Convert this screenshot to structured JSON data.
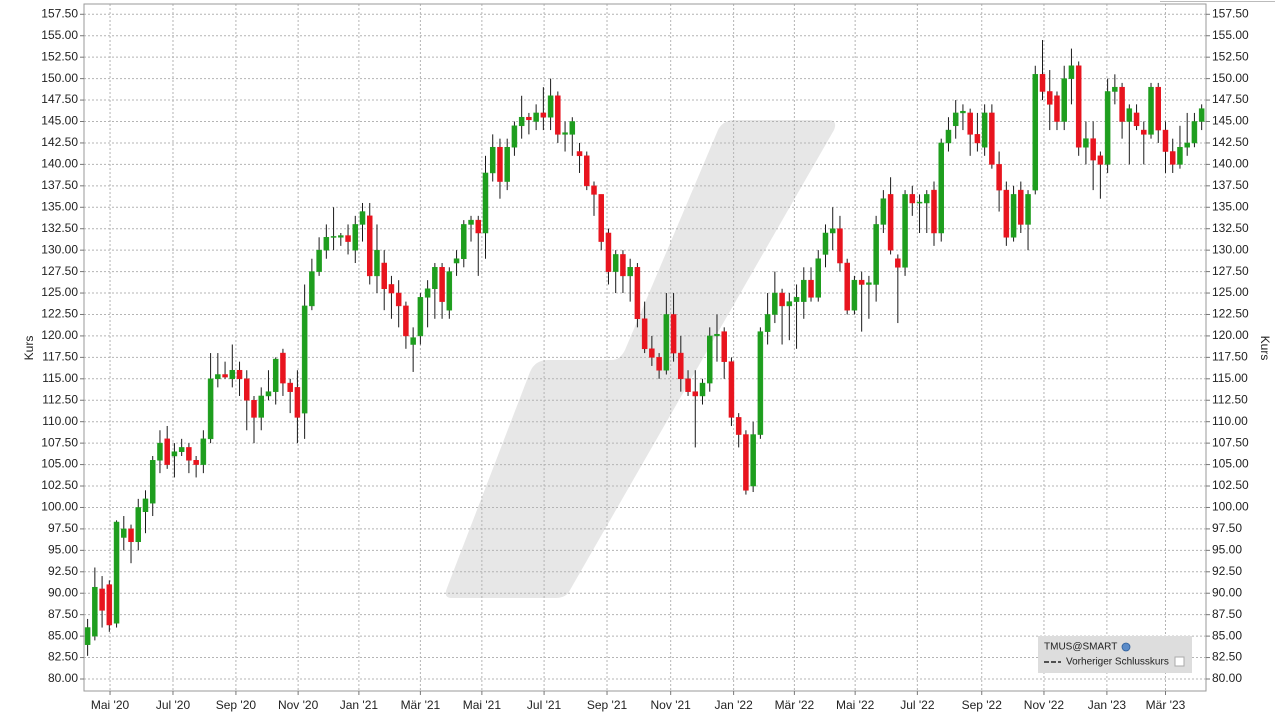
{
  "chart_data": {
    "type": "candlestick",
    "ylabel": "Kurs",
    "y2label": "Kurs",
    "legend": [
      "TMUS@SMART",
      "Vorheriger Schlusskurs"
    ],
    "up_color": "#1e9e1e",
    "down_color": "#e8141e",
    "grid": true,
    "xlim": [
      -0.5,
      154.6
    ],
    "xticks": [
      {
        "value": 3.1,
        "label": "Mai '20"
      },
      {
        "value": 11.8,
        "label": "Jul '20"
      },
      {
        "value": 20.5,
        "label": "Sep '20"
      },
      {
        "value": 29.1,
        "label": "Nov '20"
      },
      {
        "value": 37.5,
        "label": "Jan '21"
      },
      {
        "value": 46.0,
        "label": "Mär '21"
      },
      {
        "value": 54.5,
        "label": "Mai '21"
      },
      {
        "value": 63.1,
        "label": "Jul '21"
      },
      {
        "value": 71.8,
        "label": "Sep '21"
      },
      {
        "value": 80.6,
        "label": "Nov '21"
      },
      {
        "value": 89.3,
        "label": "Jan '22"
      },
      {
        "value": 97.7,
        "label": "Mär '22"
      },
      {
        "value": 106.1,
        "label": "Mai '22"
      },
      {
        "value": 114.7,
        "label": "Jul '22"
      },
      {
        "value": 123.6,
        "label": "Sep '22"
      },
      {
        "value": 132.2,
        "label": "Nov '22"
      },
      {
        "value": 140.9,
        "label": "Jan '23"
      },
      {
        "value": 149.0,
        "label": "Mär '23"
      }
    ],
    "ylim": [
      78.6,
      158.7
    ],
    "yticks": [
      {
        "value": 80,
        "label": "80.00"
      },
      {
        "value": 82.5,
        "label": "82.50"
      },
      {
        "value": 85,
        "label": "85.00"
      },
      {
        "value": 87.5,
        "label": "87.50"
      },
      {
        "value": 90,
        "label": "90.00"
      },
      {
        "value": 92.5,
        "label": "92.50"
      },
      {
        "value": 95,
        "label": "95.00"
      },
      {
        "value": 97.5,
        "label": "97.50"
      },
      {
        "value": 100,
        "label": "100.00"
      },
      {
        "value": 102.5,
        "label": "102.50"
      },
      {
        "value": 105,
        "label": "105.00"
      },
      {
        "value": 107.5,
        "label": "107.50"
      },
      {
        "value": 110,
        "label": "110.00"
      },
      {
        "value": 112.5,
        "label": "112.50"
      },
      {
        "value": 115,
        "label": "115.00"
      },
      {
        "value": 117.5,
        "label": "117.50"
      },
      {
        "value": 120,
        "label": "120.00"
      },
      {
        "value": 122.5,
        "label": "122.50"
      },
      {
        "value": 125,
        "label": "125.00"
      },
      {
        "value": 127.5,
        "label": "127.50"
      },
      {
        "value": 130,
        "label": "130.00"
      },
      {
        "value": 132.5,
        "label": "132.50"
      },
      {
        "value": 135,
        "label": "135.00"
      },
      {
        "value": 137.5,
        "label": "137.50"
      },
      {
        "value": 140,
        "label": "140.00"
      },
      {
        "value": 142.5,
        "label": "142.50"
      },
      {
        "value": 145,
        "label": "145.00"
      },
      {
        "value": 147.5,
        "label": "147.50"
      },
      {
        "value": 150,
        "label": "150.00"
      },
      {
        "value": 152.5,
        "label": "152.50"
      },
      {
        "value": 155,
        "label": "155.00"
      },
      {
        "value": 157.5,
        "label": "157.50"
      }
    ],
    "x": [
      0,
      1,
      2,
      3,
      4,
      5,
      6,
      7,
      8,
      9,
      10,
      11,
      12,
      13,
      14,
      15,
      16,
      17,
      18,
      19,
      20,
      21,
      22,
      23,
      24,
      25,
      26,
      27,
      28,
      29,
      30,
      31,
      32,
      33,
      34,
      35,
      36,
      37,
      38,
      39,
      40,
      41,
      42,
      43,
      44,
      45,
      46,
      47,
      48,
      49,
      50,
      51,
      52,
      53,
      54,
      55,
      56,
      57,
      58,
      59,
      60,
      61,
      62,
      63,
      64,
      65,
      66,
      67,
      68,
      69,
      70,
      71,
      72,
      73,
      74,
      75,
      76,
      77,
      78,
      79,
      80,
      81,
      82,
      83,
      84,
      85,
      86,
      87,
      88,
      89,
      90,
      91,
      92,
      93,
      94,
      95,
      96,
      97,
      98,
      99,
      100,
      101,
      102,
      103,
      104,
      105,
      106,
      107,
      108,
      109,
      110,
      111,
      112,
      113,
      114,
      115,
      116,
      117,
      118,
      119,
      120,
      121,
      122,
      123,
      124,
      125,
      126,
      127,
      128,
      129,
      130,
      131,
      132,
      133,
      134,
      135,
      136,
      137,
      138,
      139,
      140,
      141,
      142,
      143,
      144,
      145,
      146,
      147,
      148,
      149,
      150,
      151,
      152,
      153,
      154
    ],
    "open": [
      84,
      85,
      90.5,
      91,
      86.5,
      96.5,
      97.5,
      96,
      99.5,
      100.5,
      105.5,
      108,
      106,
      106.5,
      107,
      105.5,
      105,
      108,
      115,
      115.5,
      115,
      116,
      115,
      112.5,
      110.5,
      113,
      113.5,
      118,
      114.5,
      114,
      111,
      123.5,
      127.5,
      130,
      131.5,
      131.5,
      131.7,
      130,
      133,
      134,
      127,
      128.5,
      126,
      125,
      123.5,
      119,
      120,
      124.5,
      125.5,
      128,
      123,
      128.5,
      129,
      133,
      133.5,
      132,
      139,
      142,
      138,
      142,
      144.5,
      145.5,
      145,
      146,
      145.5,
      148,
      143.5,
      143.5,
      141.5,
      141,
      137.5,
      136.5,
      132,
      127.5,
      129.5,
      127,
      128,
      122,
      118.5,
      117.5,
      116,
      122.5,
      118,
      115,
      113.5,
      113,
      114.5,
      120,
      120.5,
      117,
      110.5,
      108.5,
      102.5,
      108.5,
      120.5,
      122.5,
      125,
      123.5,
      124,
      124,
      126.5,
      124.5,
      129.5,
      132,
      132.5,
      128.5,
      123,
      126.5,
      126,
      126,
      133,
      136.5,
      129,
      128,
      136.5,
      135.5,
      135.5,
      137,
      132,
      142.5,
      144.5,
      146,
      146,
      143.5,
      142,
      146,
      140,
      137,
      131.5,
      137,
      133,
      137,
      150.5,
      148.5,
      148,
      145,
      150,
      151.5,
      142,
      143,
      141,
      140,
      148.5,
      149,
      145,
      146,
      144,
      143.5,
      149,
      144,
      141.5,
      140,
      142,
      142.5,
      145
    ],
    "high": [
      87,
      93,
      92,
      91.5,
      98.5,
      99,
      98,
      101,
      102,
      106,
      109,
      109.5,
      107.5,
      108,
      107.5,
      106,
      109,
      118,
      118,
      117,
      119,
      117,
      116,
      113,
      114,
      116,
      117.5,
      118.5,
      115,
      116,
      126,
      129,
      131.5,
      133,
      135,
      132,
      133,
      134,
      135.5,
      135.5,
      133,
      130,
      127,
      126.5,
      124,
      121,
      125,
      126.5,
      128.5,
      128.5,
      128,
      130,
      133.5,
      134,
      134,
      141,
      143.5,
      143,
      143,
      145,
      148,
      146,
      147,
      149,
      150,
      148.5,
      145,
      145.5,
      142.5,
      141.5,
      138,
      136.5,
      132.5,
      130,
      130,
      129,
      128.5,
      124,
      120,
      118,
      125,
      125,
      120,
      116,
      116,
      115,
      121,
      122.5,
      121,
      117.5,
      111,
      109,
      110,
      121,
      125,
      127.5,
      125.5,
      125,
      126,
      128,
      128,
      130,
      133,
      135,
      134,
      129,
      127,
      127.5,
      127,
      134,
      137,
      138.5,
      129.5,
      137,
      137.5,
      136.5,
      137,
      138,
      143,
      145.5,
      147.5,
      147,
      146.5,
      146,
      147,
      147,
      141.5,
      138,
      137.5,
      138,
      137,
      151.5,
      154.5,
      151,
      148.5,
      151.5,
      153.5,
      152,
      145,
      145,
      141.5,
      150,
      150.5,
      149.5,
      147,
      147,
      145,
      149.5,
      149.5,
      145,
      143,
      144.5,
      146,
      146,
      147
    ],
    "low": [
      82.7,
      84.5,
      86,
      85.5,
      86,
      95,
      93.5,
      95,
      97,
      99,
      104,
      104.5,
      103.5,
      106,
      104,
      103.5,
      104,
      107.5,
      114,
      115,
      114,
      113,
      109,
      107.5,
      109,
      112.5,
      112,
      113,
      111,
      107.5,
      108,
      123,
      127,
      129,
      130,
      130.5,
      129.5,
      128.5,
      131,
      126,
      125,
      123,
      122,
      121,
      118.5,
      115.8,
      119,
      121,
      122,
      122,
      122,
      127,
      128,
      131,
      127,
      129,
      138,
      136,
      137,
      141,
      143,
      143.5,
      144,
      144,
      144,
      142.5,
      141.5,
      141,
      139,
      137,
      134,
      130,
      126,
      125,
      125,
      124,
      121,
      118,
      116.5,
      115,
      115.5,
      117,
      113.5,
      113,
      107,
      112,
      113.5,
      117,
      115,
      109.5,
      107,
      101.5,
      101.8,
      108,
      119,
      121.5,
      119,
      119.5,
      118.5,
      122,
      124,
      124,
      128,
      130,
      127.5,
      122.5,
      122.5,
      120.5,
      122,
      124,
      132,
      129.5,
      121.5,
      127,
      134,
      132,
      132,
      130.5,
      131,
      141.5,
      143,
      144,
      141,
      141.5,
      141,
      139.5,
      134.5,
      130.5,
      131,
      132,
      130,
      136.5,
      147.5,
      144,
      144,
      144,
      147,
      141,
      140,
      137,
      136,
      139,
      147,
      143,
      140,
      144,
      140,
      143,
      142.5,
      139,
      139,
      139.5,
      141,
      142,
      144
    ],
    "close": [
      86,
      90.7,
      88,
      86.3,
      98.3,
      97.5,
      96,
      100,
      101,
      105.5,
      107.5,
      105,
      106.5,
      107,
      105.5,
      105,
      108,
      115,
      115.5,
      115.2,
      116,
      115,
      112.5,
      110.5,
      113,
      113.5,
      117.3,
      114.5,
      113.5,
      110.5,
      123.5,
      127.5,
      130,
      131.5,
      131.6,
      131.7,
      131,
      133,
      134.5,
      127,
      130,
      125.5,
      125,
      123.5,
      120,
      119.8,
      124.5,
      125.5,
      128,
      124,
      127.5,
      129,
      133,
      133.5,
      132,
      139,
      142,
      138,
      142,
      144.5,
      145.5,
      145.2,
      146,
      145.5,
      148,
      143.5,
      143.7,
      145,
      141,
      137.5,
      136.5,
      131,
      127.5,
      129.5,
      127,
      128,
      122,
      118.5,
      117.5,
      116,
      122.5,
      118,
      115,
      113.5,
      113,
      114.5,
      120,
      120.2,
      117,
      110.5,
      108.5,
      102,
      108.5,
      120.5,
      122.5,
      125,
      123.5,
      124,
      124.5,
      126.5,
      124.5,
      129,
      132,
      132.5,
      128.5,
      123,
      126.5,
      126,
      126.2,
      133,
      136,
      130,
      128,
      136.5,
      135.5,
      135.6,
      136.5,
      132,
      142.5,
      144,
      146,
      146.2,
      143.5,
      142.5,
      146,
      140,
      137,
      131.5,
      136.5,
      133,
      136.5,
      150.5,
      148.5,
      147,
      145,
      150,
      151.5,
      142,
      143,
      140.5,
      140,
      148.5,
      149,
      145,
      146.5,
      144.5,
      143.5,
      149,
      144,
      141.5,
      140,
      142,
      142.5,
      145,
      146.5
    ]
  }
}
